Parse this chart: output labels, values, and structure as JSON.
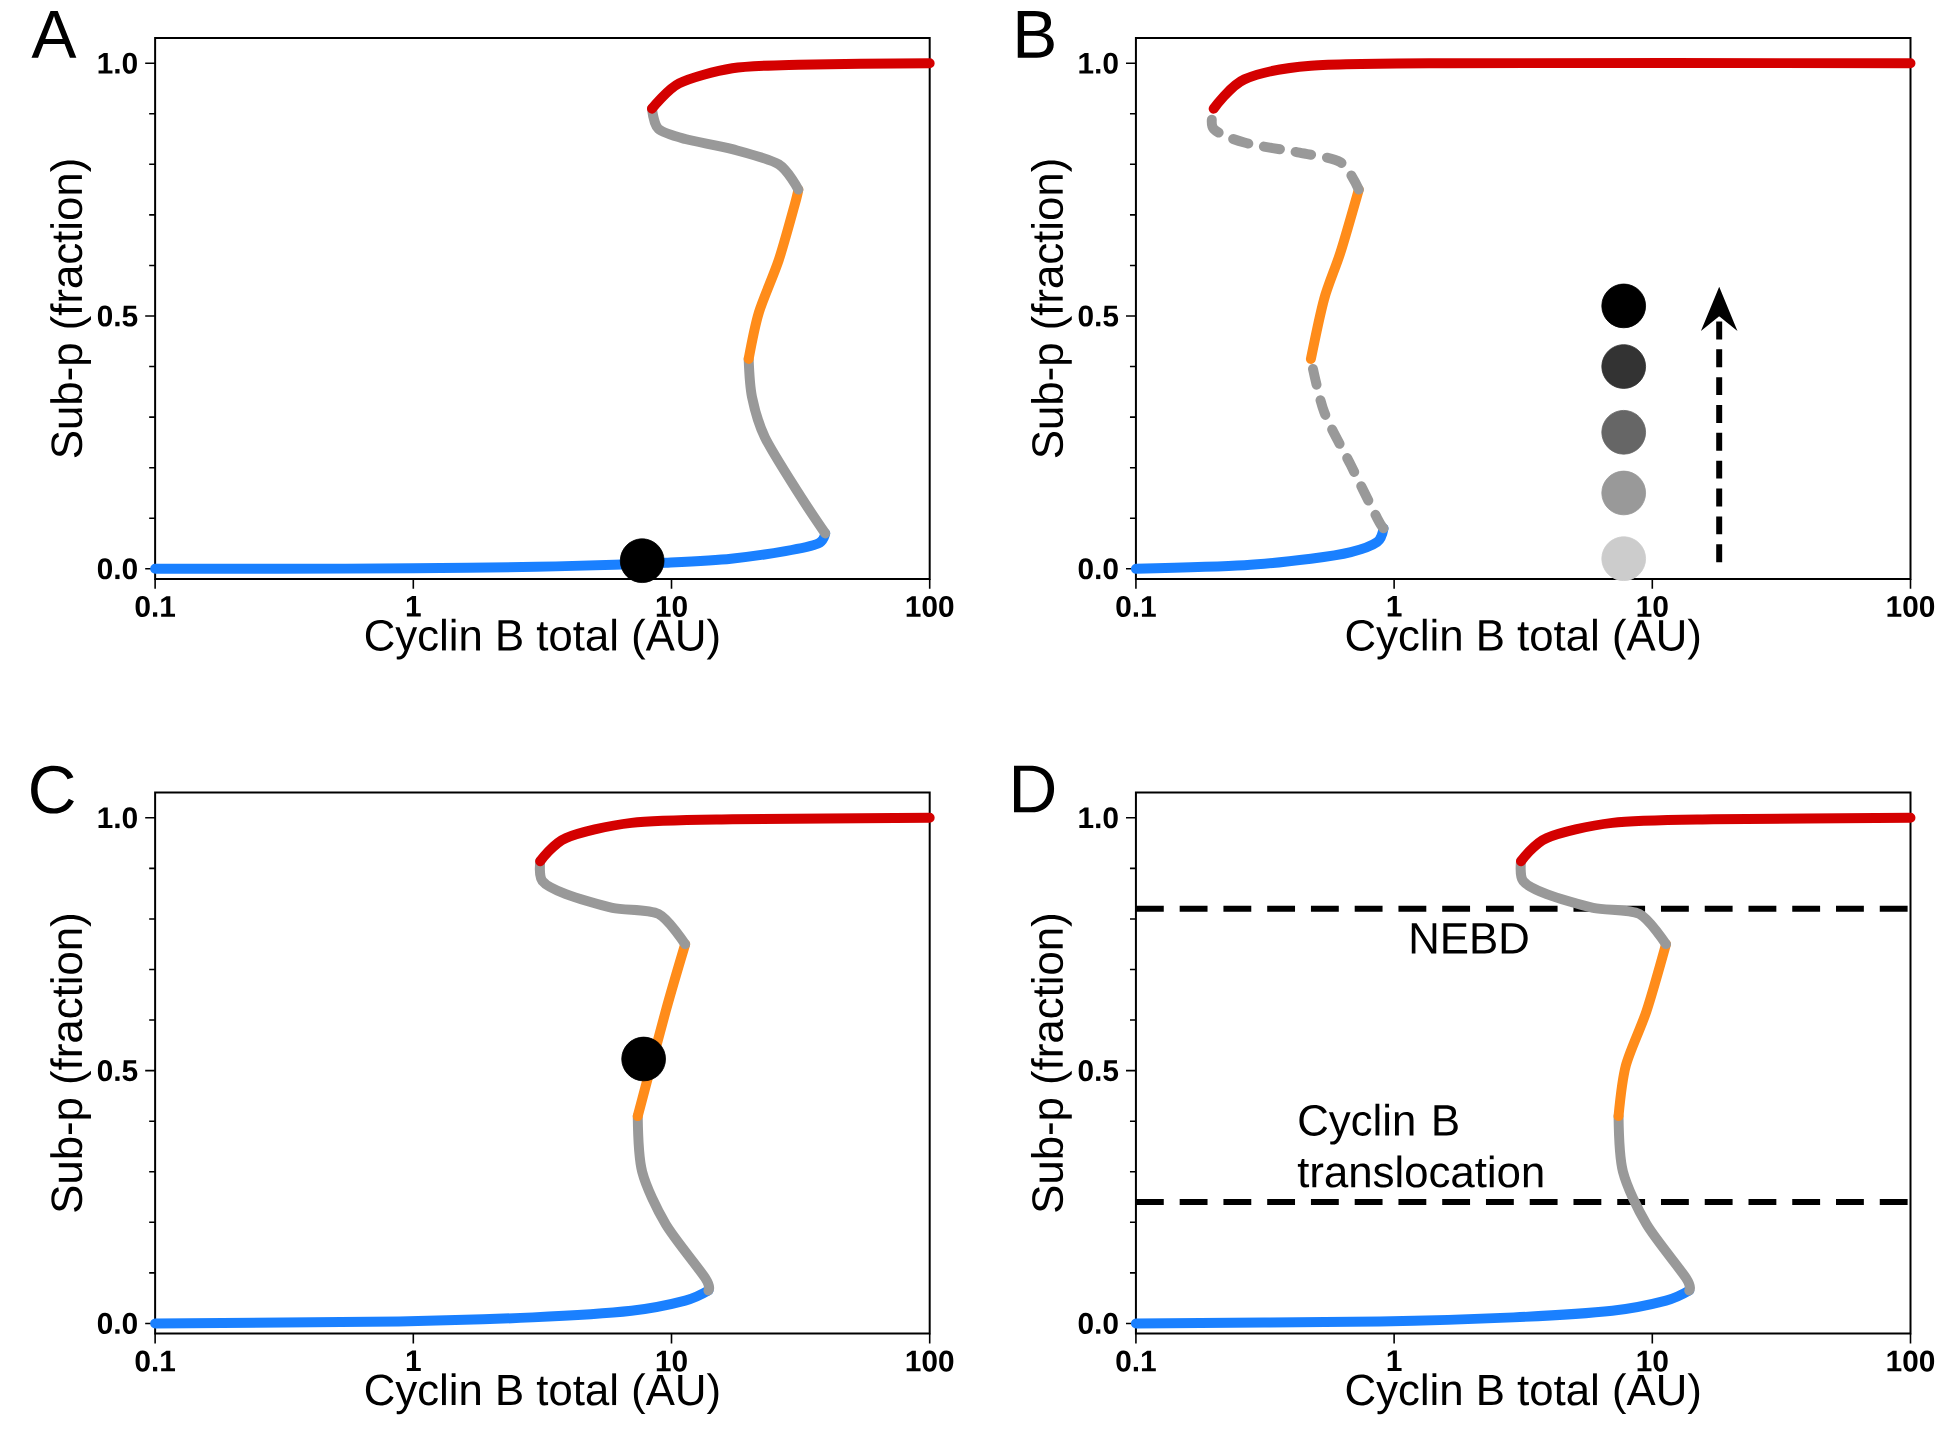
{
  "chart_data": [
    {
      "type": "line",
      "title": "A",
      "xlabel": "Cyclin B total (AU)",
      "ylabel": "Sub-p (fraction)",
      "log": "x",
      "xlim": [
        0.1,
        100
      ],
      "ylim": [
        -0.02,
        1.05
      ],
      "xticks": [
        0.1,
        1,
        10,
        100
      ],
      "yticks": [
        {
          "value": 0,
          "label": "0.0"
        },
        {
          "value": 0.5,
          "label": "0.5"
        },
        {
          "value": 1,
          "label": "1.0"
        }
      ],
      "series": [
        {
          "color": "#1a80ff",
          "x": [
            0.1,
            0.3,
            1,
            3,
            6,
            9.5,
            17,
            27.6,
            37,
            39.4
          ],
          "values": [
            0,
            0,
            0.001,
            0.004,
            0.008,
            0.012,
            0.02,
            0.035,
            0.05,
            0.07
          ]
        },
        {
          "color": "#999999",
          "line_style": "solid",
          "x": [
            39.4,
            31,
            23,
            20.5,
            19.9
          ],
          "values": [
            0.07,
            0.15,
            0.26,
            0.34,
            0.415
          ]
        },
        {
          "color": "#ff8c1a",
          "x": [
            19.9,
            21.8,
            26,
            30,
            31
          ],
          "values": [
            0.415,
            0.507,
            0.61,
            0.72,
            0.75
          ]
        },
        {
          "color": "#999999",
          "line_style": "solid",
          "x": [
            31,
            26,
            17.2,
            11.3,
            8.9,
            8.4
          ],
          "values": [
            0.75,
            0.8,
            0.83,
            0.85,
            0.87,
            0.91
          ]
        },
        {
          "color": "#d40000",
          "x": [
            8.4,
            10.7,
            17.2,
            31,
            100
          ],
          "values": [
            0.91,
            0.96,
            0.99,
            0.997,
            1
          ]
        },
        {
          "type": "scatter",
          "marker": "circle",
          "x": [
            7.7
          ],
          "values": [
            0.016
          ],
          "colors": [
            "#000000"
          ]
        }
      ]
    },
    {
      "type": "line",
      "title": "B",
      "xlabel": "Cyclin B total (AU)",
      "ylabel": "Sub-p (fraction)",
      "log": "x",
      "xlim": [
        0.1,
        100
      ],
      "ylim": [
        -0.02,
        1.05
      ],
      "xticks": [
        0.1,
        1,
        10,
        100
      ],
      "yticks": [
        {
          "value": 0,
          "label": "0.0"
        },
        {
          "value": 0.5,
          "label": "0.5"
        },
        {
          "value": 1,
          "label": "1.0"
        }
      ],
      "series": [
        {
          "color": "#1a80ff",
          "x": [
            0.1,
            0.263,
            0.476,
            0.68,
            0.86,
            0.91
          ],
          "values": [
            0,
            0.007,
            0.02,
            0.033,
            0.053,
            0.08
          ]
        },
        {
          "color": "#999999",
          "line_style": "dashed",
          "x": [
            0.91,
            0.86,
            0.68,
            0.536,
            0.476
          ],
          "values": [
            0.08,
            0.1,
            0.205,
            0.31,
            0.415
          ]
        },
        {
          "color": "#ff8c1a",
          "x": [
            0.476,
            0.536,
            0.62,
            0.73
          ],
          "values": [
            0.415,
            0.534,
            0.626,
            0.75
          ]
        },
        {
          "color": "#999999",
          "line_style": "dashed",
          "x": [
            0.73,
            0.62,
            0.43,
            0.263,
            0.2,
            0.2
          ],
          "values": [
            0.75,
            0.804,
            0.823,
            0.843,
            0.87,
            0.91
          ]
        },
        {
          "color": "#d40000",
          "x": [
            0.2,
            0.263,
            0.476,
            1.6,
            100
          ],
          "values": [
            0.91,
            0.968,
            0.995,
            1,
            1
          ]
        },
        {
          "type": "scatter",
          "marker": "circle",
          "x": [
            7.75,
            7.75,
            7.75,
            7.75,
            7.75
          ],
          "values": [
            0.52,
            0.4,
            0.27,
            0.15,
            0.02
          ],
          "colors": [
            "#000000",
            "#333333",
            "#666666",
            "#999999",
            "#cccccc"
          ]
        }
      ]
    },
    {
      "type": "line",
      "title": "C",
      "xlabel": "Cyclin B total (AU)",
      "ylabel": "Sub-p (fraction)",
      "log": "x",
      "xlim": [
        0.1,
        100
      ],
      "ylim": [
        -0.02,
        1.05
      ],
      "xticks": [
        0.1,
        1,
        10,
        100
      ],
      "yticks": [
        {
          "value": 0,
          "label": "0.0"
        },
        {
          "value": 0.5,
          "label": "0.5"
        },
        {
          "value": 1,
          "label": "1.0"
        }
      ],
      "series": [
        {
          "color": "#1a80ff",
          "x": [
            0.1,
            0.88,
            2.9,
            7,
            11.3,
            13.9
          ],
          "values": [
            0,
            0.004,
            0.012,
            0.025,
            0.045,
            0.065
          ]
        },
        {
          "color": "#999999",
          "line_style": "solid",
          "x": [
            13.9,
            13.5,
            9.5,
            7.7,
            7.4
          ],
          "values": [
            0.065,
            0.09,
            0.196,
            0.3,
            0.41
          ]
        },
        {
          "color": "#ff8c1a",
          "x": [
            7.4,
            7.9,
            9.5,
            11.3
          ],
          "values": [
            0.41,
            null,
            0.618,
            0.75
          ]
        },
        {
          "color": "#999999",
          "line_style": "solid",
          "x": [
            11.3,
            8.9,
            5.9,
            3.9,
            3.16,
            3.1
          ],
          "values": [
            0.75,
            0.81,
            0.822,
            0.849,
            0.875,
            0.914
          ]
        },
        {
          "color": "#d40000",
          "x": [
            3.1,
            3.9,
            7,
            17.2,
            100
          ],
          "values": [
            0.914,
            0.96,
            0.99,
            0.997,
            1
          ]
        },
        {
          "type": "scatter",
          "marker": "circle",
          "x": [
            7.8
          ],
          "values": [
            0.523
          ],
          "colors": [
            "#000000"
          ]
        }
      ]
    },
    {
      "type": "line",
      "title": "D",
      "xlabel": "Cyclin B total (AU)",
      "ylabel": "Sub-p (fraction)",
      "log": "x",
      "xlim": [
        0.1,
        100
      ],
      "ylim": [
        -0.02,
        1.05
      ],
      "xticks": [
        0.1,
        1,
        10,
        100
      ],
      "yticks": [
        {
          "value": 0,
          "label": "0.0"
        },
        {
          "value": 0.5,
          "label": "0.5"
        },
        {
          "value": 1,
          "label": "1.0"
        }
      ],
      "series": [
        {
          "color": "#1a80ff",
          "x": [
            0.1,
            0.88,
            2.9,
            7,
            11.3,
            13.9
          ],
          "values": [
            0,
            0.004,
            0.012,
            0.025,
            0.045,
            0.065
          ]
        },
        {
          "color": "#999999",
          "line_style": "solid",
          "x": [
            13.9,
            13.5,
            9.5,
            7.7,
            7.4
          ],
          "values": [
            0.065,
            0.09,
            0.196,
            0.3,
            0.41
          ]
        },
        {
          "color": "#ff8c1a",
          "x": [
            7.4,
            7.9,
            9.5,
            11.3
          ],
          "values": [
            0.41,
            0.51,
            0.618,
            0.75
          ]
        },
        {
          "color": "#999999",
          "line_style": "solid",
          "x": [
            11.3,
            8.9,
            5.9,
            3.9,
            3.16,
            3.1
          ],
          "values": [
            0.75,
            0.81,
            0.822,
            0.849,
            0.875,
            0.914
          ]
        },
        {
          "color": "#d40000",
          "x": [
            3.1,
            3.9,
            7,
            17.2,
            100
          ],
          "values": [
            0.914,
            0.96,
            0.99,
            0.997,
            1
          ]
        }
      ],
      "ref_lines": [
        {
          "axis": "y",
          "value": 0.82,
          "label": "NEBD",
          "color": "#000000",
          "line_style": "dashed"
        },
        {
          "axis": "y",
          "value": 0.24,
          "label": "Cyclin B translocation",
          "color": "#000000",
          "line_style": "dashed"
        }
      ]
    }
  ]
}
